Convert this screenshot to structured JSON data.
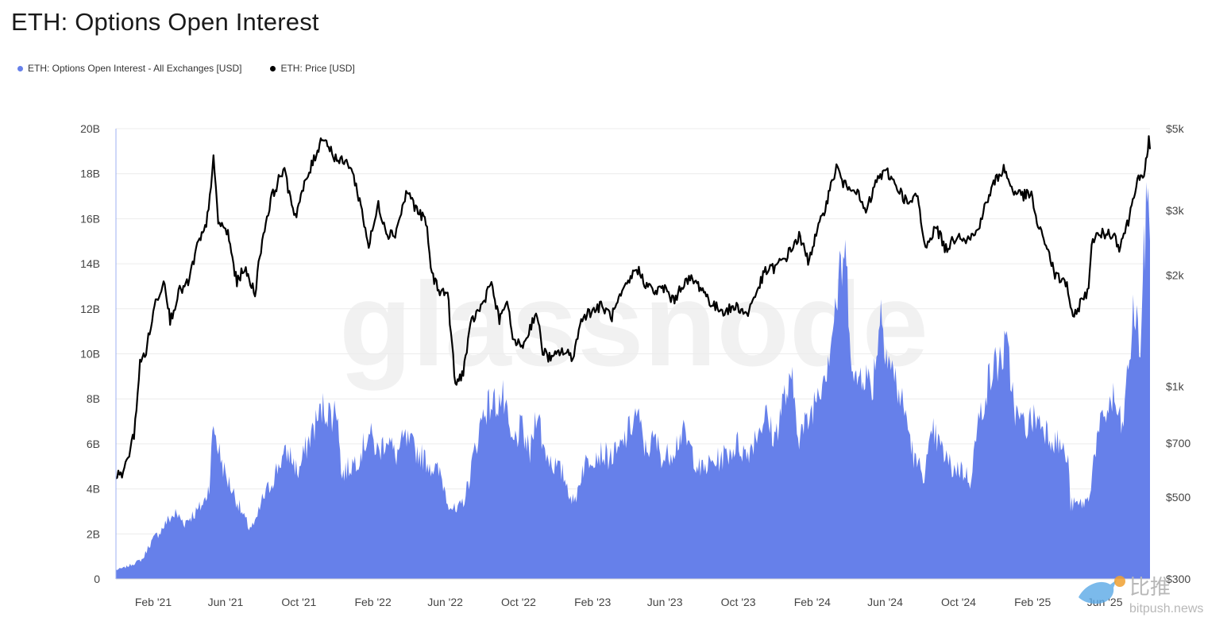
{
  "chart_data": {
    "type": "area",
    "title": "ETH: Options Open Interest",
    "colors": {
      "oi": "#6680EA",
      "price": "#000000",
      "grid": "#ececec",
      "axis": "#d9d9d9"
    },
    "x_ticks": [
      "Feb '21",
      "Jun '21",
      "Oct '21",
      "Feb '22",
      "Jun '22",
      "Oct '22",
      "Feb '23",
      "Jun '23",
      "Oct '23",
      "Feb '24",
      "Jun '24",
      "Oct '24",
      "Feb '25",
      "Jun '25"
    ],
    "x_tick_dates": [
      "2021-02-01",
      "2021-06-01",
      "2021-10-01",
      "2022-02-01",
      "2022-06-01",
      "2022-10-01",
      "2023-02-01",
      "2023-06-01",
      "2023-10-01",
      "2024-02-01",
      "2024-06-01",
      "2024-10-01",
      "2025-02-01",
      "2025-06-01"
    ],
    "x_range": [
      "2020-12-01",
      "2025-08-15"
    ],
    "y_left": {
      "ticks": [
        "0",
        "2B",
        "4B",
        "6B",
        "8B",
        "10B",
        "12B",
        "14B",
        "16B",
        "18B",
        "20B"
      ],
      "min": 0,
      "max": 20,
      "unit": "B"
    },
    "y_right": {
      "scale": "log",
      "min": 300,
      "max": 5000,
      "ticks": [
        {
          "label": "$300",
          "value": 300
        },
        {
          "label": "$500",
          "value": 500
        },
        {
          "label": "$700",
          "value": 700
        },
        {
          "label": "$1k",
          "value": 1000
        },
        {
          "label": "$2k",
          "value": 2000
        },
        {
          "label": "$3k",
          "value": 3000
        },
        {
          "label": "$5k",
          "value": 5000
        }
      ]
    },
    "legend_placement": "top-left",
    "series": [
      {
        "name": "ETH: Options Open Interest - All Exchanges [USD]",
        "axis": "left",
        "unit": "B",
        "points": [
          [
            "2020-12-01",
            0.4
          ],
          [
            "2020-12-15",
            0.5
          ],
          [
            "2021-01-01",
            0.7
          ],
          [
            "2021-01-15",
            0.9
          ],
          [
            "2021-01-25",
            1.5
          ],
          [
            "2021-02-05",
            1.9
          ],
          [
            "2021-02-15",
            2.2
          ],
          [
            "2021-02-25",
            2.6
          ],
          [
            "2021-03-10",
            2.9
          ],
          [
            "2021-03-25",
            2.5
          ],
          [
            "2021-04-05",
            2.8
          ],
          [
            "2021-04-15",
            3.0
          ],
          [
            "2021-04-28",
            3.5
          ],
          [
            "2021-05-05",
            4.2
          ],
          [
            "2021-05-12",
            6.9
          ],
          [
            "2021-05-20",
            5.8
          ],
          [
            "2021-06-01",
            4.6
          ],
          [
            "2021-06-15",
            3.8
          ],
          [
            "2021-06-30",
            2.8
          ],
          [
            "2021-07-10",
            2.3
          ],
          [
            "2021-07-20",
            2.4
          ],
          [
            "2021-08-01",
            3.5
          ],
          [
            "2021-08-15",
            4.2
          ],
          [
            "2021-09-01",
            5.3
          ],
          [
            "2021-09-15",
            5.6
          ],
          [
            "2021-09-30",
            4.7
          ],
          [
            "2021-10-10",
            5.6
          ],
          [
            "2021-10-25",
            6.7
          ],
          [
            "2021-11-10",
            7.6
          ],
          [
            "2021-11-25",
            7.3
          ],
          [
            "2021-12-05",
            7.6
          ],
          [
            "2021-12-10",
            4.6
          ],
          [
            "2021-12-25",
            5.0
          ],
          [
            "2022-01-10",
            5.5
          ],
          [
            "2022-01-25",
            6.5
          ],
          [
            "2022-02-10",
            5.6
          ],
          [
            "2022-02-25",
            6.4
          ],
          [
            "2022-03-10",
            5.4
          ],
          [
            "2022-03-25",
            6.2
          ],
          [
            "2022-04-10",
            5.8
          ],
          [
            "2022-04-25",
            5.4
          ],
          [
            "2022-05-10",
            5.0
          ],
          [
            "2022-05-25",
            4.6
          ],
          [
            "2022-06-05",
            3.5
          ],
          [
            "2022-06-20",
            2.9
          ],
          [
            "2022-07-05",
            3.7
          ],
          [
            "2022-07-20",
            5.7
          ],
          [
            "2022-08-05",
            7.6
          ],
          [
            "2022-08-20",
            7.8
          ],
          [
            "2022-09-05",
            8.0
          ],
          [
            "2022-09-20",
            5.9
          ],
          [
            "2022-10-05",
            6.7
          ],
          [
            "2022-10-20",
            5.5
          ],
          [
            "2022-11-01",
            7.8
          ],
          [
            "2022-11-10",
            5.9
          ],
          [
            "2022-11-25",
            5.2
          ],
          [
            "2022-12-15",
            4.6
          ],
          [
            "2023-01-01",
            3.3
          ],
          [
            "2023-01-15",
            4.9
          ],
          [
            "2023-01-30",
            5.5
          ],
          [
            "2023-02-15",
            5.6
          ],
          [
            "2023-03-01",
            5.4
          ],
          [
            "2023-03-15",
            5.6
          ],
          [
            "2023-04-01",
            6.5
          ],
          [
            "2023-04-15",
            7.4
          ],
          [
            "2023-04-30",
            5.7
          ],
          [
            "2023-05-15",
            6.2
          ],
          [
            "2023-05-30",
            5.3
          ],
          [
            "2023-06-15",
            5.8
          ],
          [
            "2023-06-30",
            6.5
          ],
          [
            "2023-07-15",
            5.7
          ],
          [
            "2023-07-30",
            4.8
          ],
          [
            "2023-08-15",
            5.1
          ],
          [
            "2023-08-30",
            5.3
          ],
          [
            "2023-09-15",
            5.6
          ],
          [
            "2023-09-30",
            6.0
          ],
          [
            "2023-10-15",
            5.5
          ],
          [
            "2023-10-30",
            6.4
          ],
          [
            "2023-11-15",
            7.3
          ],
          [
            "2023-11-30",
            6.2
          ],
          [
            "2023-12-15",
            8.0
          ],
          [
            "2023-12-30",
            8.6
          ],
          [
            "2024-01-10",
            6.4
          ],
          [
            "2024-01-25",
            7.0
          ],
          [
            "2024-02-10",
            8.4
          ],
          [
            "2024-02-25",
            9.6
          ],
          [
            "2024-03-10",
            12.0
          ],
          [
            "2024-03-25",
            14.5
          ],
          [
            "2024-04-01",
            12.5
          ],
          [
            "2024-04-10",
            8.5
          ],
          [
            "2024-04-25",
            9.4
          ],
          [
            "2024-05-10",
            8.4
          ],
          [
            "2024-05-25",
            12.0
          ],
          [
            "2024-06-05",
            10.0
          ],
          [
            "2024-06-20",
            8.6
          ],
          [
            "2024-07-05",
            7.3
          ],
          [
            "2024-07-20",
            5.2
          ],
          [
            "2024-08-05",
            4.7
          ],
          [
            "2024-08-20",
            6.5
          ],
          [
            "2024-09-05",
            5.6
          ],
          [
            "2024-09-20",
            4.9
          ],
          [
            "2024-10-05",
            4.9
          ],
          [
            "2024-10-20",
            4.4
          ],
          [
            "2024-11-01",
            6.6
          ],
          [
            "2024-11-15",
            8.4
          ],
          [
            "2024-12-01",
            9.5
          ],
          [
            "2024-12-20",
            10.2
          ],
          [
            "2025-01-05",
            7.2
          ],
          [
            "2025-01-20",
            6.8
          ],
          [
            "2025-02-05",
            7.2
          ],
          [
            "2025-02-20",
            6.8
          ],
          [
            "2025-03-05",
            6.3
          ],
          [
            "2025-03-20",
            5.9
          ],
          [
            "2025-04-01",
            5.2
          ],
          [
            "2025-04-05",
            3.3
          ],
          [
            "2025-04-20",
            3.3
          ],
          [
            "2025-05-05",
            3.5
          ],
          [
            "2025-05-15",
            5.7
          ],
          [
            "2025-05-30",
            7.2
          ],
          [
            "2025-06-15",
            8.0
          ],
          [
            "2025-06-30",
            6.6
          ],
          [
            "2025-07-10",
            9.4
          ],
          [
            "2025-07-20",
            12.0
          ],
          [
            "2025-07-30",
            10.3
          ],
          [
            "2025-08-05",
            14.2
          ],
          [
            "2025-08-12",
            17.8
          ],
          [
            "2025-08-15",
            15.0
          ]
        ]
      },
      {
        "name": "ETH: Price [USD]",
        "axis": "right",
        "points": [
          [
            "2020-12-01",
            570
          ],
          [
            "2020-12-15",
            590
          ],
          [
            "2020-12-31",
            740
          ],
          [
            "2021-01-10",
            1150
          ],
          [
            "2021-01-20",
            1250
          ],
          [
            "2021-02-05",
            1700
          ],
          [
            "2021-02-20",
            1950
          ],
          [
            "2021-03-01",
            1500
          ],
          [
            "2021-03-15",
            1800
          ],
          [
            "2021-03-31",
            1900
          ],
          [
            "2021-04-15",
            2400
          ],
          [
            "2021-04-30",
            2700
          ],
          [
            "2021-05-12",
            4100
          ],
          [
            "2021-05-20",
            2800
          ],
          [
            "2021-06-05",
            2600
          ],
          [
            "2021-06-20",
            1900
          ],
          [
            "2021-07-01",
            2100
          ],
          [
            "2021-07-20",
            1800
          ],
          [
            "2021-08-01",
            2500
          ],
          [
            "2021-08-15",
            3200
          ],
          [
            "2021-09-05",
            3900
          ],
          [
            "2021-09-25",
            2900
          ],
          [
            "2021-10-10",
            3500
          ],
          [
            "2021-10-30",
            4300
          ],
          [
            "2021-11-10",
            4800
          ],
          [
            "2021-11-25",
            4300
          ],
          [
            "2021-12-05",
            4100
          ],
          [
            "2021-12-25",
            4000
          ],
          [
            "2022-01-10",
            3200
          ],
          [
            "2022-01-25",
            2400
          ],
          [
            "2022-02-10",
            3100
          ],
          [
            "2022-02-25",
            2600
          ],
          [
            "2022-03-10",
            2600
          ],
          [
            "2022-03-30",
            3400
          ],
          [
            "2022-04-15",
            3000
          ],
          [
            "2022-04-30",
            2800
          ],
          [
            "2022-05-10",
            2000
          ],
          [
            "2022-05-25",
            1800
          ],
          [
            "2022-06-05",
            1800
          ],
          [
            "2022-06-18",
            1000
          ],
          [
            "2022-07-01",
            1100
          ],
          [
            "2022-07-15",
            1500
          ],
          [
            "2022-08-05",
            1700
          ],
          [
            "2022-08-15",
            1950
          ],
          [
            "2022-08-30",
            1500
          ],
          [
            "2022-09-10",
            1700
          ],
          [
            "2022-09-25",
            1300
          ],
          [
            "2022-10-10",
            1300
          ],
          [
            "2022-10-30",
            1600
          ],
          [
            "2022-11-10",
            1250
          ],
          [
            "2022-11-25",
            1180
          ],
          [
            "2022-12-10",
            1250
          ],
          [
            "2022-12-30",
            1200
          ],
          [
            "2023-01-15",
            1550
          ],
          [
            "2023-01-30",
            1600
          ],
          [
            "2023-02-15",
            1650
          ],
          [
            "2023-03-05",
            1550
          ],
          [
            "2023-03-20",
            1750
          ],
          [
            "2023-04-15",
            2100
          ],
          [
            "2023-04-30",
            1900
          ],
          [
            "2023-05-15",
            1800
          ],
          [
            "2023-06-01",
            1850
          ],
          [
            "2023-06-15",
            1700
          ],
          [
            "2023-07-01",
            1900
          ],
          [
            "2023-07-15",
            1950
          ],
          [
            "2023-08-01",
            1850
          ],
          [
            "2023-08-20",
            1650
          ],
          [
            "2023-09-10",
            1600
          ],
          [
            "2023-09-30",
            1650
          ],
          [
            "2023-10-15",
            1560
          ],
          [
            "2023-10-31",
            1800
          ],
          [
            "2023-11-15",
            2050
          ],
          [
            "2023-12-01",
            2100
          ],
          [
            "2023-12-20",
            2250
          ],
          [
            "2024-01-10",
            2550
          ],
          [
            "2024-01-25",
            2200
          ],
          [
            "2024-02-15",
            2800
          ],
          [
            "2024-03-01",
            3400
          ],
          [
            "2024-03-12",
            3950
          ],
          [
            "2024-03-25",
            3500
          ],
          [
            "2024-04-10",
            3500
          ],
          [
            "2024-04-30",
            2950
          ],
          [
            "2024-05-20",
            3700
          ],
          [
            "2024-06-05",
            3800
          ],
          [
            "2024-06-25",
            3400
          ],
          [
            "2024-07-10",
            3100
          ],
          [
            "2024-07-25",
            3300
          ],
          [
            "2024-08-05",
            2400
          ],
          [
            "2024-08-25",
            2700
          ],
          [
            "2024-09-10",
            2350
          ],
          [
            "2024-09-30",
            2600
          ],
          [
            "2024-10-15",
            2500
          ],
          [
            "2024-10-30",
            2600
          ],
          [
            "2024-11-15",
            3100
          ],
          [
            "2024-11-30",
            3600
          ],
          [
            "2024-12-15",
            3900
          ],
          [
            "2024-12-30",
            3400
          ],
          [
            "2025-01-15",
            3300
          ],
          [
            "2025-01-30",
            3300
          ],
          [
            "2025-02-10",
            2700
          ],
          [
            "2025-02-25",
            2400
          ],
          [
            "2025-03-10",
            2000
          ],
          [
            "2025-03-30",
            1900
          ],
          [
            "2025-04-09",
            1500
          ],
          [
            "2025-04-25",
            1750
          ],
          [
            "2025-05-05",
            1800
          ],
          [
            "2025-05-10",
            2500
          ],
          [
            "2025-05-30",
            2600
          ],
          [
            "2025-06-15",
            2600
          ],
          [
            "2025-06-25",
            2400
          ],
          [
            "2025-07-10",
            2800
          ],
          [
            "2025-07-25",
            3700
          ],
          [
            "2025-08-05",
            3600
          ],
          [
            "2025-08-10",
            4300
          ],
          [
            "2025-08-13",
            4700
          ],
          [
            "2025-08-15",
            4400
          ]
        ]
      }
    ]
  },
  "watermark": {
    "center": "glassnode",
    "corner_cn": "比推",
    "corner_site": "bitpush.news"
  }
}
